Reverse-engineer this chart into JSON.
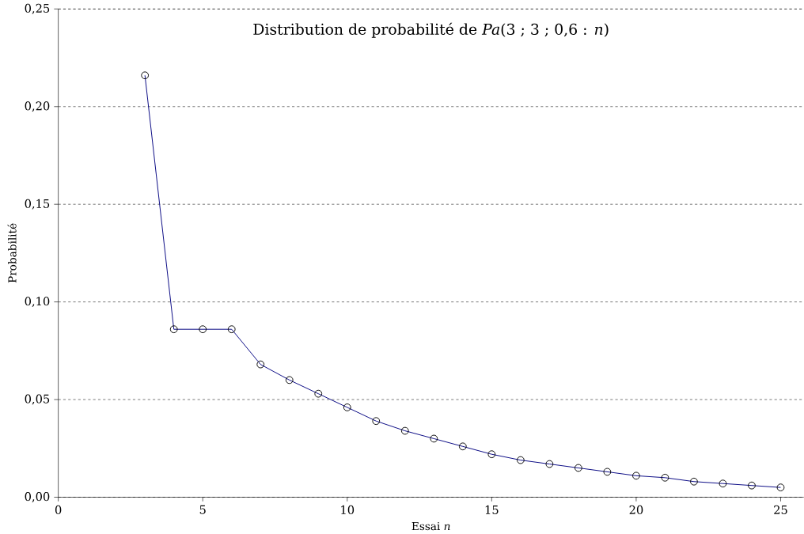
{
  "chart_data": {
    "type": "line",
    "title": "Distribution de probabilité de *Pa*(3 ; 3 ; 0,6 : *n*)",
    "xlabel": "Essai *n*",
    "ylabel": "Probabilité",
    "x": [
      3,
      4,
      5,
      6,
      7,
      8,
      9,
      10,
      11,
      12,
      13,
      14,
      15,
      16,
      17,
      18,
      19,
      20,
      21,
      22,
      23,
      24,
      25
    ],
    "series": [
      {
        "color": "#000080",
        "values": [
          0.216,
          0.086,
          0.086,
          0.086,
          0.068,
          0.06,
          0.053,
          0.046,
          0.039,
          0.034,
          0.03,
          0.026,
          0.022,
          0.019,
          0.017,
          0.015,
          0.013,
          0.011,
          0.01,
          0.008,
          0.007,
          0.006,
          0.005
        ]
      }
    ],
    "xlim": [
      0,
      25.8
    ],
    "xticks": [
      0,
      5,
      10,
      15,
      20,
      25
    ],
    "ylim": [
      0,
      0.25
    ],
    "yticks": [
      {
        "value": 0,
        "label": "0,00"
      },
      {
        "value": 0.05,
        "label": "0,05"
      },
      {
        "value": 0.1,
        "label": "0,10"
      },
      {
        "value": 0.15,
        "label": "0,15"
      },
      {
        "value": 0.2,
        "label": "0,20"
      },
      {
        "value": 0.25,
        "label": "0,25"
      }
    ],
    "grid": "y",
    "marker": "circle",
    "line_style": "solid"
  }
}
